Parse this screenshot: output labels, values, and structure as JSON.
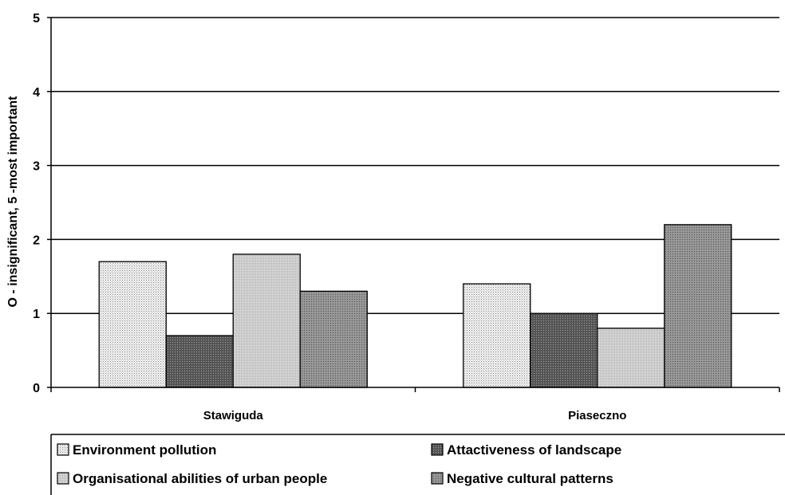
{
  "chart_data": {
    "type": "bar",
    "categories": [
      "Stawiguda",
      "Piaseczno"
    ],
    "series": [
      {
        "name": "Environment pollution",
        "values": [
          1.7,
          1.4
        ],
        "color": "#e8e8e8",
        "pattern": "dots-light"
      },
      {
        "name": "Attactiveness of landscape",
        "values": [
          0.7,
          1.0
        ],
        "color": "#6b6b6b",
        "pattern": "dots-dark"
      },
      {
        "name": "Organisational abilities of urban people",
        "values": [
          1.8,
          0.8
        ],
        "color": "#d0d0d0",
        "pattern": "dots-mid"
      },
      {
        "name": "Negative cultural patterns",
        "values": [
          1.3,
          2.2
        ],
        "color": "#8f8f8f",
        "pattern": "dots-mid-dark"
      }
    ],
    "title": "",
    "xlabel": "",
    "ylabel": "O - insignificant, 5 -most important",
    "ylim": [
      0,
      5
    ],
    "yticks": [
      "0",
      "1",
      "2",
      "3",
      "4",
      "5"
    ],
    "grid": true,
    "legend_position": "bottom"
  }
}
